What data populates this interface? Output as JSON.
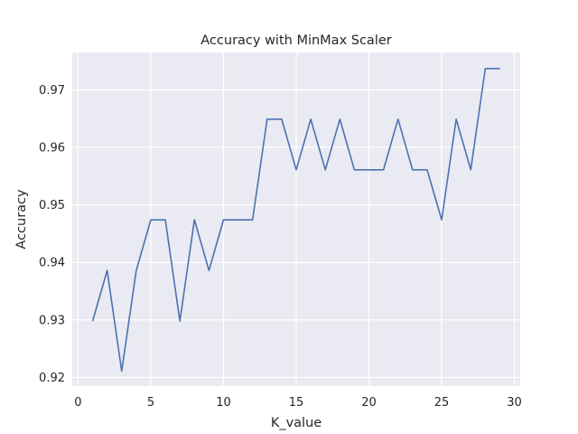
{
  "chart_data": {
    "type": "line",
    "title": "Accuracy with MinMax Scaler",
    "xlabel": "K_value",
    "ylabel": "Accuracy",
    "xlim": [
      -0.4,
      30.4
    ],
    "ylim": [
      0.9185,
      0.9765
    ],
    "xticks": [
      0,
      5,
      10,
      15,
      20,
      25,
      30
    ],
    "yticks": [
      0.92,
      0.93,
      0.94,
      0.95,
      0.96,
      0.97
    ],
    "ytick_labels": [
      "0.92",
      "0.93",
      "0.94",
      "0.95",
      "0.96",
      "0.97"
    ],
    "grid": true,
    "background": "#EAEAF2",
    "line_color": "#4C72B0",
    "x": [
      1,
      2,
      3,
      4,
      5,
      6,
      7,
      8,
      9,
      10,
      11,
      12,
      13,
      14,
      15,
      16,
      17,
      18,
      19,
      20,
      21,
      22,
      23,
      24,
      25,
      26,
      27,
      28,
      29
    ],
    "values": [
      0.9298,
      0.9386,
      0.9211,
      0.9386,
      0.9474,
      0.9474,
      0.9298,
      0.9474,
      0.9386,
      0.9474,
      0.9474,
      0.9474,
      0.9649,
      0.9649,
      0.9561,
      0.9649,
      0.9561,
      0.9649,
      0.9561,
      0.9561,
      0.9561,
      0.9649,
      0.9561,
      0.9561,
      0.9474,
      0.9649,
      0.9561,
      0.9737,
      0.9737
    ]
  }
}
